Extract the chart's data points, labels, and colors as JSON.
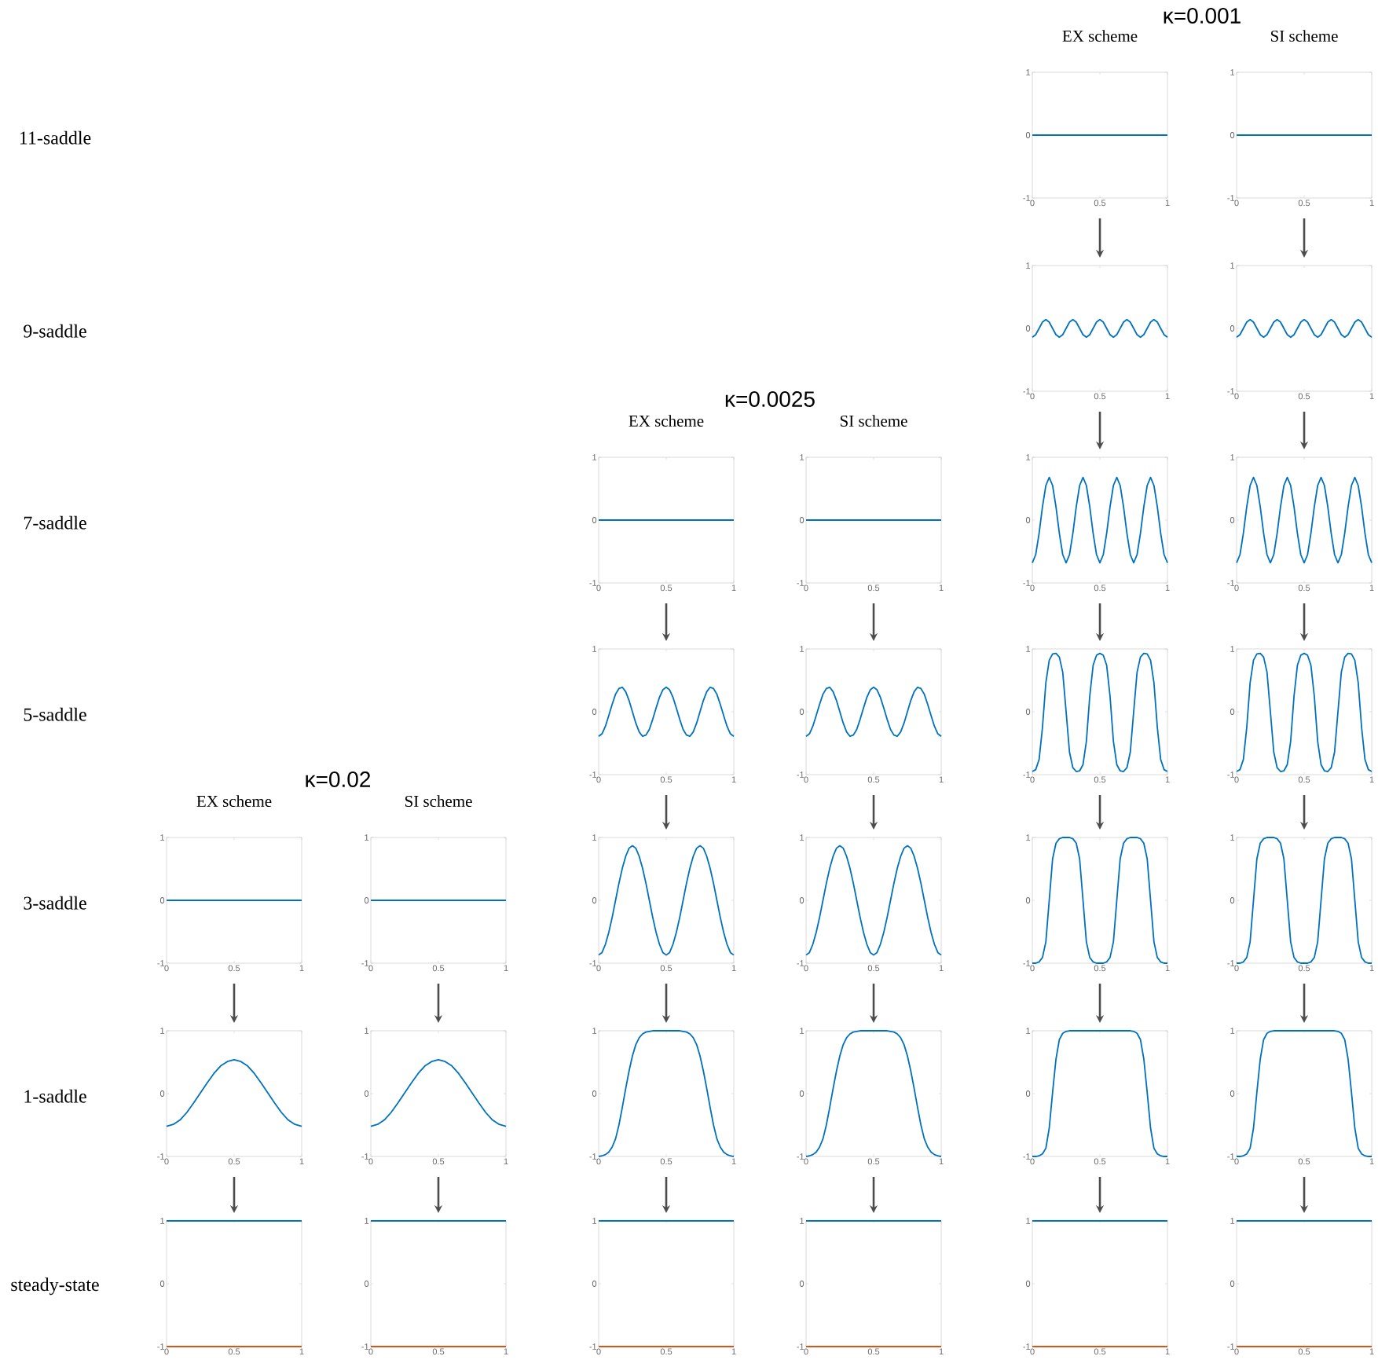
{
  "chart_data": [
    {
      "type": "line",
      "title": "EX scheme",
      "ylabel": "11-saddle",
      "x": [
        0,
        1
      ],
      "series": [
        {
          "color": "#0072bd",
          "values": [
            0,
            0
          ]
        }
      ],
      "xlim": [
        0,
        1
      ],
      "ylim": [
        -1,
        1
      ],
      "xticks": [
        0,
        0.5,
        1
      ],
      "yticks": [
        -1,
        0,
        1
      ]
    },
    {
      "type": "line",
      "title": "SI  scheme",
      "x": [
        0,
        1
      ],
      "series": [
        {
          "color": "#0072bd",
          "values": [
            0,
            0
          ]
        }
      ],
      "xlim": [
        0,
        1
      ],
      "ylim": [
        -1,
        1
      ],
      "xticks": [
        0,
        0.5,
        1
      ],
      "yticks": [
        -1,
        0,
        1
      ]
    },
    {
      "type": "line",
      "ylabel": "9-saddle",
      "x": [
        0,
        0.025,
        0.05,
        0.075,
        0.1,
        0.125,
        0.15,
        0.175,
        0.2,
        0.225,
        0.25,
        0.275,
        0.3,
        0.325,
        0.35,
        0.375,
        0.4,
        0.425,
        0.45,
        0.475,
        0.5,
        0.525,
        0.55,
        0.575,
        0.6,
        0.625,
        0.65,
        0.675,
        0.7,
        0.725,
        0.75,
        0.775,
        0.8,
        0.825,
        0.85,
        0.875,
        0.9,
        0.925,
        0.95,
        0.975,
        1
      ],
      "series": [
        {
          "color": "#0072bd",
          "values": [
            -0.14,
            -0.1,
            0,
            0.1,
            0.14,
            0.1,
            0,
            -0.1,
            -0.14,
            -0.1,
            0,
            0.1,
            0.14,
            0.1,
            0,
            -0.1,
            -0.14,
            -0.1,
            0,
            0.1,
            0.14,
            0.1,
            0,
            -0.1,
            -0.14,
            -0.1,
            0,
            0.1,
            0.14,
            0.1,
            0,
            -0.1,
            -0.14,
            -0.1,
            0,
            0.1,
            0.14,
            0.1,
            0,
            -0.1,
            -0.14
          ]
        }
      ],
      "xlim": [
        0,
        1
      ],
      "ylim": [
        -1,
        1
      ],
      "xticks": [
        0,
        0.5,
        1
      ],
      "yticks": [
        -1,
        0,
        1
      ]
    },
    {
      "type": "line",
      "x": [
        0,
        0.025,
        0.05,
        0.075,
        0.1,
        0.125,
        0.15,
        0.175,
        0.2,
        0.225,
        0.25,
        0.275,
        0.3,
        0.325,
        0.35,
        0.375,
        0.4,
        0.425,
        0.45,
        0.475,
        0.5,
        0.525,
        0.55,
        0.575,
        0.6,
        0.625,
        0.65,
        0.675,
        0.7,
        0.725,
        0.75,
        0.775,
        0.8,
        0.825,
        0.85,
        0.875,
        0.9,
        0.925,
        0.95,
        0.975,
        1
      ],
      "series": [
        {
          "color": "#0072bd",
          "values": [
            -0.14,
            -0.1,
            0,
            0.1,
            0.14,
            0.1,
            0,
            -0.1,
            -0.14,
            -0.1,
            0,
            0.1,
            0.14,
            0.1,
            0,
            -0.1,
            -0.14,
            -0.1,
            0,
            0.1,
            0.14,
            0.1,
            0,
            -0.1,
            -0.14,
            -0.1,
            0,
            0.1,
            0.14,
            0.1,
            0,
            -0.1,
            -0.14,
            -0.1,
            0,
            0.1,
            0.14,
            0.1,
            0,
            -0.1,
            -0.14
          ]
        }
      ],
      "xlim": [
        0,
        1
      ],
      "ylim": [
        -1,
        1
      ],
      "xticks": [
        0,
        0.5,
        1
      ],
      "yticks": [
        -1,
        0,
        1
      ]
    },
    {
      "type": "line",
      "title": "EX scheme",
      "ylabel": "7-saddle",
      "x": [
        0,
        1
      ],
      "series": [
        {
          "color": "#0072bd",
          "values": [
            0,
            0
          ]
        }
      ],
      "xlim": [
        0,
        1
      ],
      "ylim": [
        -1,
        1
      ],
      "xticks": [
        0,
        0.5,
        1
      ],
      "yticks": [
        -1,
        0,
        1
      ]
    },
    {
      "type": "line",
      "title": "SI  scheme",
      "x": [
        0,
        1
      ],
      "series": [
        {
          "color": "#0072bd",
          "values": [
            0,
            0
          ]
        }
      ],
      "xlim": [
        0,
        1
      ],
      "ylim": [
        -1,
        1
      ],
      "xticks": [
        0,
        0.5,
        1
      ],
      "yticks": [
        -1,
        0,
        1
      ]
    },
    {
      "type": "line",
      "x": [
        0,
        0.025,
        0.05,
        0.075,
        0.1,
        0.125,
        0.15,
        0.175,
        0.2,
        0.225,
        0.25,
        0.275,
        0.3,
        0.325,
        0.35,
        0.375,
        0.4,
        0.425,
        0.45,
        0.475,
        0.5,
        0.525,
        0.55,
        0.575,
        0.6,
        0.625,
        0.65,
        0.675,
        0.7,
        0.725,
        0.75,
        0.775,
        0.8,
        0.825,
        0.85,
        0.875,
        0.9,
        0.925,
        0.95,
        0.975,
        1
      ],
      "series": [
        {
          "color": "#0072bd",
          "values": [
            -0.68,
            -0.55,
            -0.21,
            0.21,
            0.55,
            0.68,
            0.55,
            0.21,
            -0.21,
            -0.55,
            -0.68,
            -0.55,
            -0.21,
            0.21,
            0.55,
            0.68,
            0.55,
            0.21,
            -0.21,
            -0.55,
            -0.68,
            -0.55,
            -0.21,
            0.21,
            0.55,
            0.68,
            0.55,
            0.21,
            -0.21,
            -0.55,
            -0.68,
            -0.55,
            -0.21,
            0.21,
            0.55,
            0.68,
            0.55,
            0.21,
            -0.21,
            -0.55,
            -0.68
          ]
        }
      ],
      "xlim": [
        0,
        1
      ],
      "ylim": [
        -1,
        1
      ],
      "xticks": [
        0,
        0.5,
        1
      ],
      "yticks": [
        -1,
        0,
        1
      ]
    },
    {
      "type": "line",
      "x": [
        0,
        0.025,
        0.05,
        0.075,
        0.1,
        0.125,
        0.15,
        0.175,
        0.2,
        0.225,
        0.25,
        0.275,
        0.3,
        0.325,
        0.35,
        0.375,
        0.4,
        0.425,
        0.45,
        0.475,
        0.5,
        0.525,
        0.55,
        0.575,
        0.6,
        0.625,
        0.65,
        0.675,
        0.7,
        0.725,
        0.75,
        0.775,
        0.8,
        0.825,
        0.85,
        0.875,
        0.9,
        0.925,
        0.95,
        0.975,
        1
      ],
      "series": [
        {
          "color": "#0072bd",
          "values": [
            -0.68,
            -0.55,
            -0.21,
            0.21,
            0.55,
            0.68,
            0.55,
            0.21,
            -0.21,
            -0.55,
            -0.68,
            -0.55,
            -0.21,
            0.21,
            0.55,
            0.68,
            0.55,
            0.21,
            -0.21,
            -0.55,
            -0.68,
            -0.55,
            -0.21,
            0.21,
            0.55,
            0.68,
            0.55,
            0.21,
            -0.21,
            -0.55,
            -0.68,
            -0.55,
            -0.21,
            0.21,
            0.55,
            0.68,
            0.55,
            0.21,
            -0.21,
            -0.55,
            -0.68
          ]
        }
      ],
      "xlim": [
        0,
        1
      ],
      "ylim": [
        -1,
        1
      ],
      "xticks": [
        0,
        0.5,
        1
      ],
      "yticks": [
        -1,
        0,
        1
      ]
    },
    {
      "type": "line",
      "ylabel": "5-saddle",
      "x": [
        0,
        0.025,
        0.05,
        0.075,
        0.1,
        0.125,
        0.15,
        0.175,
        0.2,
        0.225,
        0.25,
        0.275,
        0.3,
        0.325,
        0.35,
        0.375,
        0.4,
        0.425,
        0.45,
        0.475,
        0.5,
        0.525,
        0.55,
        0.575,
        0.6,
        0.625,
        0.65,
        0.675,
        0.7,
        0.725,
        0.75,
        0.775,
        0.8,
        0.825,
        0.85,
        0.875,
        0.9,
        0.925,
        0.95,
        0.975,
        1
      ],
      "series": [
        {
          "color": "#0072bd",
          "values": [
            -0.39,
            -0.35,
            -0.23,
            -0.06,
            0.12,
            0.28,
            0.37,
            0.39,
            0.32,
            0.18,
            0,
            -0.18,
            -0.32,
            -0.39,
            -0.37,
            -0.28,
            -0.12,
            0.06,
            0.23,
            0.35,
            0.39,
            0.35,
            0.23,
            0.06,
            -0.12,
            -0.28,
            -0.37,
            -0.39,
            -0.32,
            -0.18,
            0,
            0.18,
            0.32,
            0.39,
            0.37,
            0.28,
            0.12,
            -0.06,
            -0.23,
            -0.35,
            -0.39
          ]
        }
      ],
      "xlim": [
        0,
        1
      ],
      "ylim": [
        -1,
        1
      ],
      "xticks": [
        0,
        0.5,
        1
      ],
      "yticks": [
        -1,
        0,
        1
      ]
    },
    {
      "type": "line",
      "x": [
        0,
        0.025,
        0.05,
        0.075,
        0.1,
        0.125,
        0.15,
        0.175,
        0.2,
        0.225,
        0.25,
        0.275,
        0.3,
        0.325,
        0.35,
        0.375,
        0.4,
        0.425,
        0.45,
        0.475,
        0.5,
        0.525,
        0.55,
        0.575,
        0.6,
        0.625,
        0.65,
        0.675,
        0.7,
        0.725,
        0.75,
        0.775,
        0.8,
        0.825,
        0.85,
        0.875,
        0.9,
        0.925,
        0.95,
        0.975,
        1
      ],
      "series": [
        {
          "color": "#0072bd",
          "values": [
            -0.39,
            -0.35,
            -0.23,
            -0.06,
            0.12,
            0.28,
            0.37,
            0.39,
            0.32,
            0.18,
            0,
            -0.18,
            -0.32,
            -0.39,
            -0.37,
            -0.28,
            -0.12,
            0.06,
            0.23,
            0.35,
            0.39,
            0.35,
            0.23,
            0.06,
            -0.12,
            -0.28,
            -0.37,
            -0.39,
            -0.32,
            -0.18,
            0,
            0.18,
            0.32,
            0.39,
            0.37,
            0.28,
            0.12,
            -0.06,
            -0.23,
            -0.35,
            -0.39
          ]
        }
      ],
      "xlim": [
        0,
        1
      ],
      "ylim": [
        -1,
        1
      ],
      "xticks": [
        0,
        0.5,
        1
      ],
      "yticks": [
        -1,
        0,
        1
      ]
    },
    {
      "type": "line",
      "x": [
        0,
        0.025,
        0.05,
        0.075,
        0.1,
        0.125,
        0.15,
        0.175,
        0.2,
        0.225,
        0.25,
        0.275,
        0.3,
        0.325,
        0.35,
        0.375,
        0.4,
        0.425,
        0.45,
        0.475,
        0.5,
        0.525,
        0.55,
        0.575,
        0.6,
        0.625,
        0.65,
        0.675,
        0.7,
        0.725,
        0.75,
        0.775,
        0.8,
        0.825,
        0.85,
        0.875,
        0.9,
        0.925,
        0.95,
        0.975,
        1
      ],
      "series": [
        {
          "color": "#0072bd",
          "values": [
            -0.95,
            -0.92,
            -0.76,
            -0.25,
            0.46,
            0.82,
            0.92,
            0.93,
            0.87,
            0.63,
            0,
            -0.64,
            -0.89,
            -0.95,
            -0.94,
            -0.84,
            -0.47,
            0.25,
            0.74,
            0.9,
            0.93,
            0.9,
            0.74,
            0.25,
            -0.47,
            -0.84,
            -0.94,
            -0.95,
            -0.89,
            -0.64,
            0,
            0.63,
            0.87,
            0.93,
            0.92,
            0.82,
            0.46,
            -0.25,
            -0.76,
            -0.92,
            -0.95
          ]
        }
      ],
      "xlim": [
        0,
        1
      ],
      "ylim": [
        -1,
        1
      ],
      "xticks": [
        0,
        0.5,
        1
      ],
      "yticks": [
        -1,
        0,
        1
      ]
    },
    {
      "type": "line",
      "x": [
        0,
        0.025,
        0.05,
        0.075,
        0.1,
        0.125,
        0.15,
        0.175,
        0.2,
        0.225,
        0.25,
        0.275,
        0.3,
        0.325,
        0.35,
        0.375,
        0.4,
        0.425,
        0.45,
        0.475,
        0.5,
        0.525,
        0.55,
        0.575,
        0.6,
        0.625,
        0.65,
        0.675,
        0.7,
        0.725,
        0.75,
        0.775,
        0.8,
        0.825,
        0.85,
        0.875,
        0.9,
        0.925,
        0.95,
        0.975,
        1
      ],
      "series": [
        {
          "color": "#0072bd",
          "values": [
            -0.95,
            -0.92,
            -0.76,
            -0.25,
            0.46,
            0.82,
            0.92,
            0.93,
            0.87,
            0.63,
            0,
            -0.64,
            -0.89,
            -0.95,
            -0.94,
            -0.84,
            -0.47,
            0.25,
            0.74,
            0.9,
            0.93,
            0.9,
            0.74,
            0.25,
            -0.47,
            -0.84,
            -0.94,
            -0.95,
            -0.89,
            -0.64,
            0,
            0.63,
            0.87,
            0.93,
            0.92,
            0.82,
            0.46,
            -0.25,
            -0.76,
            -0.92,
            -0.95
          ]
        }
      ],
      "xlim": [
        0,
        1
      ],
      "ylim": [
        -1,
        1
      ],
      "xticks": [
        0,
        0.5,
        1
      ],
      "yticks": [
        -1,
        0,
        1
      ]
    },
    {
      "type": "line",
      "title": "EX scheme",
      "ylabel": "3-saddle",
      "x": [
        0,
        1
      ],
      "series": [
        {
          "color": "#0072bd",
          "values": [
            0,
            0
          ]
        }
      ],
      "xlim": [
        0,
        1
      ],
      "ylim": [
        -1,
        1
      ],
      "xticks": [
        0,
        0.5,
        1
      ],
      "yticks": [
        -1,
        0,
        1
      ]
    },
    {
      "type": "line",
      "title": "SI scheme",
      "x": [
        0,
        1
      ],
      "series": [
        {
          "color": "#0072bd",
          "values": [
            0,
            0
          ]
        }
      ],
      "xlim": [
        0,
        1
      ],
      "ylim": [
        -1,
        1
      ],
      "xticks": [
        0,
        0.5,
        1
      ],
      "yticks": [
        -1,
        0,
        1
      ]
    },
    {
      "type": "line",
      "x": [
        0,
        0.025,
        0.05,
        0.075,
        0.1,
        0.125,
        0.15,
        0.175,
        0.2,
        0.225,
        0.25,
        0.275,
        0.3,
        0.325,
        0.35,
        0.375,
        0.4,
        0.425,
        0.45,
        0.475,
        0.5,
        0.525,
        0.55,
        0.575,
        0.6,
        0.625,
        0.65,
        0.675,
        0.7,
        0.725,
        0.75,
        0.775,
        0.8,
        0.825,
        0.85,
        0.875,
        0.9,
        0.925,
        0.95,
        0.975,
        1
      ],
      "series": [
        {
          "color": "#0072bd",
          "values": [
            -0.87,
            -0.83,
            -0.7,
            -0.51,
            -0.27,
            0,
            0.27,
            0.51,
            0.7,
            0.83,
            0.87,
            0.83,
            0.7,
            0.51,
            0.27,
            0,
            -0.27,
            -0.51,
            -0.7,
            -0.83,
            -0.87,
            -0.83,
            -0.7,
            -0.51,
            -0.27,
            0,
            0.27,
            0.51,
            0.7,
            0.83,
            0.87,
            0.83,
            0.7,
            0.51,
            0.27,
            0,
            -0.27,
            -0.51,
            -0.7,
            -0.83,
            -0.87
          ]
        }
      ],
      "xlim": [
        0,
        1
      ],
      "ylim": [
        -1,
        1
      ],
      "xticks": [
        0,
        0.5,
        1
      ],
      "yticks": [
        -1,
        0,
        1
      ]
    },
    {
      "type": "line",
      "x": [
        0,
        0.025,
        0.05,
        0.075,
        0.1,
        0.125,
        0.15,
        0.175,
        0.2,
        0.225,
        0.25,
        0.275,
        0.3,
        0.325,
        0.35,
        0.375,
        0.4,
        0.425,
        0.45,
        0.475,
        0.5,
        0.525,
        0.55,
        0.575,
        0.6,
        0.625,
        0.65,
        0.675,
        0.7,
        0.725,
        0.75,
        0.775,
        0.8,
        0.825,
        0.85,
        0.875,
        0.9,
        0.925,
        0.95,
        0.975,
        1
      ],
      "series": [
        {
          "color": "#0072bd",
          "values": [
            -0.87,
            -0.83,
            -0.7,
            -0.51,
            -0.27,
            0,
            0.27,
            0.51,
            0.7,
            0.83,
            0.87,
            0.83,
            0.7,
            0.51,
            0.27,
            0,
            -0.27,
            -0.51,
            -0.7,
            -0.83,
            -0.87,
            -0.83,
            -0.7,
            -0.51,
            -0.27,
            0,
            0.27,
            0.51,
            0.7,
            0.83,
            0.87,
            0.83,
            0.7,
            0.51,
            0.27,
            0,
            -0.27,
            -0.51,
            -0.7,
            -0.83,
            -0.87
          ]
        }
      ],
      "xlim": [
        0,
        1
      ],
      "ylim": [
        -1,
        1
      ],
      "xticks": [
        0,
        0.5,
        1
      ],
      "yticks": [
        -1,
        0,
        1
      ]
    },
    {
      "type": "line",
      "x": [
        0,
        0.025,
        0.05,
        0.075,
        0.1,
        0.125,
        0.15,
        0.175,
        0.2,
        0.225,
        0.25,
        0.275,
        0.3,
        0.325,
        0.35,
        0.375,
        0.4,
        0.425,
        0.45,
        0.475,
        0.5,
        0.525,
        0.55,
        0.575,
        0.6,
        0.625,
        0.65,
        0.675,
        0.7,
        0.725,
        0.75,
        0.775,
        0.8,
        0.825,
        0.85,
        0.875,
        0.9,
        0.925,
        0.95,
        0.975,
        1
      ],
      "series": [
        {
          "color": "#0072bd",
          "values": [
            -1,
            -1,
            -0.98,
            -0.91,
            -0.66,
            0,
            0.66,
            0.91,
            0.98,
            1,
            1,
            1,
            0.98,
            0.91,
            0.66,
            0,
            -0.66,
            -0.91,
            -0.98,
            -1,
            -1,
            -1,
            -0.98,
            -0.91,
            -0.66,
            0,
            0.66,
            0.91,
            0.98,
            1,
            1,
            1,
            0.98,
            0.91,
            0.66,
            0,
            -0.66,
            -0.91,
            -0.98,
            -1,
            -1
          ]
        }
      ],
      "xlim": [
        0,
        1
      ],
      "ylim": [
        -1,
        1
      ],
      "xticks": [
        0,
        0.5,
        1
      ],
      "yticks": [
        -1,
        0,
        1
      ]
    },
    {
      "type": "line",
      "x": [
        0,
        0.025,
        0.05,
        0.075,
        0.1,
        0.125,
        0.15,
        0.175,
        0.2,
        0.225,
        0.25,
        0.275,
        0.3,
        0.325,
        0.35,
        0.375,
        0.4,
        0.425,
        0.45,
        0.475,
        0.5,
        0.525,
        0.55,
        0.575,
        0.6,
        0.625,
        0.65,
        0.675,
        0.7,
        0.725,
        0.75,
        0.775,
        0.8,
        0.825,
        0.85,
        0.875,
        0.9,
        0.925,
        0.95,
        0.975,
        1
      ],
      "series": [
        {
          "color": "#0072bd",
          "values": [
            -1,
            -1,
            -0.98,
            -0.91,
            -0.66,
            0,
            0.66,
            0.91,
            0.98,
            1,
            1,
            1,
            0.98,
            0.91,
            0.66,
            0,
            -0.66,
            -0.91,
            -0.98,
            -1,
            -1,
            -1,
            -0.98,
            -0.91,
            -0.66,
            0,
            0.66,
            0.91,
            0.98,
            1,
            1,
            1,
            0.98,
            0.91,
            0.66,
            0,
            -0.66,
            -0.91,
            -0.98,
            -1,
            -1
          ]
        }
      ],
      "xlim": [
        0,
        1
      ],
      "ylim": [
        -1,
        1
      ],
      "xticks": [
        0,
        0.5,
        1
      ],
      "yticks": [
        -1,
        0,
        1
      ]
    },
    {
      "type": "line",
      "ylabel": "1-saddle",
      "x": [
        0,
        0.05,
        0.1,
        0.15,
        0.2,
        0.25,
        0.3,
        0.35,
        0.4,
        0.45,
        0.5,
        0.55,
        0.6,
        0.65,
        0.7,
        0.75,
        0.8,
        0.85,
        0.9,
        0.95,
        1
      ],
      "series": [
        {
          "color": "#0072bd",
          "values": [
            -0.52,
            -0.49,
            -0.42,
            -0.3,
            -0.15,
            0.01,
            0.17,
            0.32,
            0.44,
            0.51,
            0.54,
            0.51,
            0.44,
            0.32,
            0.17,
            0.01,
            -0.15,
            -0.3,
            -0.42,
            -0.49,
            -0.52
          ]
        }
      ],
      "xlim": [
        0,
        1
      ],
      "ylim": [
        -1,
        1
      ],
      "xticks": [
        0,
        0.5,
        1
      ],
      "yticks": [
        -1,
        0,
        1
      ]
    },
    {
      "type": "line",
      "x": [
        0,
        0.05,
        0.1,
        0.15,
        0.2,
        0.25,
        0.3,
        0.35,
        0.4,
        0.45,
        0.5,
        0.55,
        0.6,
        0.65,
        0.7,
        0.75,
        0.8,
        0.85,
        0.9,
        0.95,
        1
      ],
      "series": [
        {
          "color": "#0072bd",
          "values": [
            -0.52,
            -0.49,
            -0.42,
            -0.3,
            -0.15,
            0.01,
            0.17,
            0.32,
            0.44,
            0.51,
            0.54,
            0.51,
            0.44,
            0.32,
            0.17,
            0.01,
            -0.15,
            -0.3,
            -0.42,
            -0.49,
            -0.52
          ]
        }
      ],
      "xlim": [
        0,
        1
      ],
      "ylim": [
        -1,
        1
      ],
      "xticks": [
        0,
        0.5,
        1
      ],
      "yticks": [
        -1,
        0,
        1
      ]
    },
    {
      "type": "line",
      "x": [
        0,
        0.025,
        0.05,
        0.075,
        0.1,
        0.125,
        0.15,
        0.175,
        0.2,
        0.225,
        0.25,
        0.275,
        0.3,
        0.325,
        0.35,
        0.375,
        0.4,
        0.425,
        0.45,
        0.475,
        0.5,
        0.525,
        0.55,
        0.575,
        0.6,
        0.625,
        0.65,
        0.675,
        0.7,
        0.725,
        0.75,
        0.775,
        0.8,
        0.825,
        0.85,
        0.875,
        0.9,
        0.925,
        0.95,
        0.975,
        1
      ],
      "series": [
        {
          "color": "#0072bd",
          "values": [
            -1,
            -0.99,
            -0.97,
            -0.93,
            -0.85,
            -0.72,
            -0.5,
            -0.22,
            0.08,
            0.36,
            0.6,
            0.78,
            0.89,
            0.95,
            0.98,
            0.99,
            1,
            1,
            1,
            1,
            1,
            1,
            1,
            1,
            1,
            0.99,
            0.98,
            0.95,
            0.89,
            0.78,
            0.6,
            0.36,
            0.08,
            -0.22,
            -0.5,
            -0.72,
            -0.85,
            -0.93,
            -0.97,
            -0.99,
            -1
          ]
        }
      ],
      "xlim": [
        0,
        1
      ],
      "ylim": [
        -1,
        1
      ],
      "xticks": [
        0,
        0.5,
        1
      ],
      "yticks": [
        -1,
        0,
        1
      ]
    },
    {
      "type": "line",
      "x": [
        0,
        0.025,
        0.05,
        0.075,
        0.1,
        0.125,
        0.15,
        0.175,
        0.2,
        0.225,
        0.25,
        0.275,
        0.3,
        0.325,
        0.35,
        0.375,
        0.4,
        0.425,
        0.45,
        0.475,
        0.5,
        0.525,
        0.55,
        0.575,
        0.6,
        0.625,
        0.65,
        0.675,
        0.7,
        0.725,
        0.75,
        0.775,
        0.8,
        0.825,
        0.85,
        0.875,
        0.9,
        0.925,
        0.95,
        0.975,
        1
      ],
      "series": [
        {
          "color": "#0072bd",
          "values": [
            -1,
            -0.99,
            -0.97,
            -0.93,
            -0.85,
            -0.72,
            -0.5,
            -0.22,
            0.08,
            0.36,
            0.6,
            0.78,
            0.89,
            0.95,
            0.98,
            0.99,
            1,
            1,
            1,
            1,
            1,
            1,
            1,
            1,
            1,
            0.99,
            0.98,
            0.95,
            0.89,
            0.78,
            0.6,
            0.36,
            0.08,
            -0.22,
            -0.5,
            -0.72,
            -0.85,
            -0.93,
            -0.97,
            -0.99,
            -1
          ]
        }
      ],
      "xlim": [
        0,
        1
      ],
      "ylim": [
        -1,
        1
      ],
      "xticks": [
        0,
        0.5,
        1
      ],
      "yticks": [
        -1,
        0,
        1
      ]
    },
    {
      "type": "line",
      "x": [
        0,
        0.025,
        0.05,
        0.075,
        0.1,
        0.125,
        0.15,
        0.175,
        0.2,
        0.225,
        0.25,
        0.275,
        0.3,
        0.325,
        0.35,
        0.375,
        0.4,
        0.425,
        0.45,
        0.475,
        0.5,
        0.525,
        0.55,
        0.575,
        0.6,
        0.625,
        0.65,
        0.675,
        0.7,
        0.725,
        0.75,
        0.775,
        0.8,
        0.825,
        0.85,
        0.875,
        0.9,
        0.925,
        0.95,
        0.975,
        1
      ],
      "series": [
        {
          "color": "#0072bd",
          "values": [
            -1,
            -1,
            -0.99,
            -0.96,
            -0.87,
            -0.55,
            0.02,
            0.55,
            0.86,
            0.96,
            0.99,
            1,
            1,
            1,
            1,
            1,
            1,
            1,
            1,
            1,
            1,
            1,
            1,
            1,
            1,
            1,
            1,
            1,
            1,
            1,
            0.99,
            0.96,
            0.86,
            0.55,
            0.02,
            -0.55,
            -0.87,
            -0.96,
            -0.99,
            -1,
            -1
          ]
        }
      ],
      "xlim": [
        0,
        1
      ],
      "ylim": [
        -1,
        1
      ],
      "xticks": [
        0,
        0.5,
        1
      ],
      "yticks": [
        -1,
        0,
        1
      ]
    },
    {
      "type": "line",
      "x": [
        0,
        0.025,
        0.05,
        0.075,
        0.1,
        0.125,
        0.15,
        0.175,
        0.2,
        0.225,
        0.25,
        0.275,
        0.3,
        0.325,
        0.35,
        0.375,
        0.4,
        0.425,
        0.45,
        0.475,
        0.5,
        0.525,
        0.55,
        0.575,
        0.6,
        0.625,
        0.65,
        0.675,
        0.7,
        0.725,
        0.75,
        0.775,
        0.8,
        0.825,
        0.85,
        0.875,
        0.9,
        0.925,
        0.95,
        0.975,
        1
      ],
      "series": [
        {
          "color": "#0072bd",
          "values": [
            -1,
            -1,
            -0.99,
            -0.96,
            -0.87,
            -0.55,
            0.02,
            0.55,
            0.86,
            0.96,
            0.99,
            1,
            1,
            1,
            1,
            1,
            1,
            1,
            1,
            1,
            1,
            1,
            1,
            1,
            1,
            1,
            1,
            1,
            1,
            1,
            0.99,
            0.96,
            0.86,
            0.55,
            0.02,
            -0.55,
            -0.87,
            -0.96,
            -0.99,
            -1,
            -1
          ]
        }
      ],
      "xlim": [
        0,
        1
      ],
      "ylim": [
        -1,
        1
      ],
      "xticks": [
        0,
        0.5,
        1
      ],
      "yticks": [
        -1,
        0,
        1
      ]
    },
    {
      "type": "line",
      "ylabel": "steady-state",
      "x": [
        0,
        1
      ],
      "series": [
        {
          "color": "#0072bd",
          "values": [
            1,
            1
          ]
        },
        {
          "color": "#d95319",
          "values": [
            -1,
            -1
          ]
        }
      ],
      "xlim": [
        0,
        1
      ],
      "ylim": [
        -1,
        1
      ],
      "xticks": [
        0,
        0.5,
        1
      ],
      "yticks": [
        -1,
        0,
        1
      ]
    },
    {
      "type": "line",
      "x": [
        0,
        1
      ],
      "series": [
        {
          "color": "#0072bd",
          "values": [
            1,
            1
          ]
        },
        {
          "color": "#d95319",
          "values": [
            -1,
            -1
          ]
        }
      ],
      "xlim": [
        0,
        1
      ],
      "ylim": [
        -1,
        1
      ],
      "xticks": [
        0,
        0.5,
        1
      ],
      "yticks": [
        -1,
        0,
        1
      ]
    },
    {
      "type": "line",
      "x": [
        0,
        1
      ],
      "series": [
        {
          "color": "#0072bd",
          "values": [
            1,
            1
          ]
        },
        {
          "color": "#d95319",
          "values": [
            -1,
            -1
          ]
        }
      ],
      "xlim": [
        0,
        1
      ],
      "ylim": [
        -1,
        1
      ],
      "xticks": [
        0,
        0.5,
        1
      ],
      "yticks": [
        -1,
        0,
        1
      ]
    },
    {
      "type": "line",
      "x": [
        0,
        1
      ],
      "series": [
        {
          "color": "#0072bd",
          "values": [
            1,
            1
          ]
        },
        {
          "color": "#d95319",
          "values": [
            -1,
            -1
          ]
        }
      ],
      "xlim": [
        0,
        1
      ],
      "ylim": [
        -1,
        1
      ],
      "xticks": [
        0,
        0.5,
        1
      ],
      "yticks": [
        -1,
        0,
        1
      ]
    },
    {
      "type": "line",
      "x": [
        0,
        1
      ],
      "series": [
        {
          "color": "#0072bd",
          "values": [
            1,
            1
          ]
        },
        {
          "color": "#d95319",
          "values": [
            -1,
            -1
          ]
        }
      ],
      "xlim": [
        0,
        1
      ],
      "ylim": [
        -1,
        1
      ],
      "xticks": [
        0,
        0.5,
        1
      ],
      "yticks": [
        -1,
        0,
        1
      ]
    },
    {
      "type": "line",
      "x": [
        0,
        1
      ],
      "series": [
        {
          "color": "#0072bd",
          "values": [
            1,
            1
          ]
        },
        {
          "color": "#d95319",
          "values": [
            -1,
            -1
          ]
        }
      ],
      "xlim": [
        0,
        1
      ],
      "ylim": [
        -1,
        1
      ],
      "xticks": [
        0,
        0.5,
        1
      ],
      "yticks": [
        -1,
        0,
        1
      ]
    },
    {
      "type": "other",
      "annotations": [
        "κ=0.001",
        "κ=0.0025",
        "κ=0.02"
      ]
    }
  ]
}
